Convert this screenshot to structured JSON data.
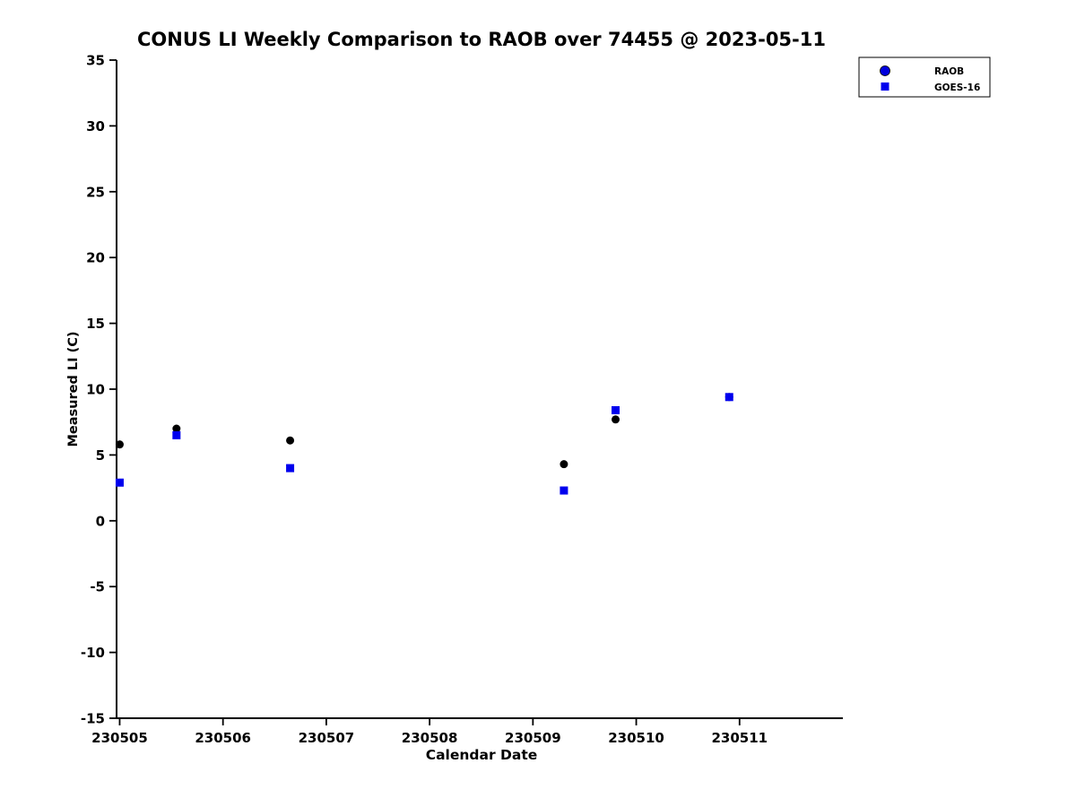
{
  "chart_data": {
    "type": "scatter",
    "title": "CONUS LI Weekly Comparison to RAOB over 74455 @ 2023-05-11",
    "xlabel": "Calendar Date",
    "ylabel": "Measured LI (C)",
    "xlim": [
      230504.97,
      230512.0
    ],
    "ylim": [
      -15,
      35
    ],
    "x_ticks": [
      230505,
      230506,
      230507,
      230508,
      230509,
      230510,
      230511
    ],
    "x_tick_labels": [
      "230505",
      "230506",
      "230507",
      "230508",
      "230509",
      "230510",
      "230511"
    ],
    "y_ticks": [
      -15,
      -10,
      -5,
      0,
      5,
      10,
      15,
      20,
      25,
      30,
      35
    ],
    "y_tick_labels": [
      "-15",
      "-10",
      "-5",
      "0",
      "5",
      "10",
      "15",
      "20",
      "25",
      "30",
      "35"
    ],
    "grid": false,
    "legend_position": "top-right",
    "series": [
      {
        "name": "RAOB",
        "marker": "circle",
        "color": "#000000",
        "legend_color": "#0000dd",
        "x": [
          230505.0,
          230505.55,
          230506.65,
          230509.3,
          230509.8,
          230510.9
        ],
        "y": [
          5.8,
          7.0,
          6.1,
          4.3,
          7.7,
          9.4
        ]
      },
      {
        "name": "GOES-16",
        "marker": "square",
        "color": "#0000ee",
        "legend_color": "#0000ee",
        "x": [
          230505.0,
          230505.55,
          230506.65,
          230509.3,
          230509.8,
          230510.9
        ],
        "y": [
          2.9,
          6.5,
          4.0,
          2.3,
          8.4,
          9.4
        ]
      }
    ],
    "colors": {
      "axis": "#000000",
      "background": "#ffffff",
      "title": "#000000"
    }
  }
}
